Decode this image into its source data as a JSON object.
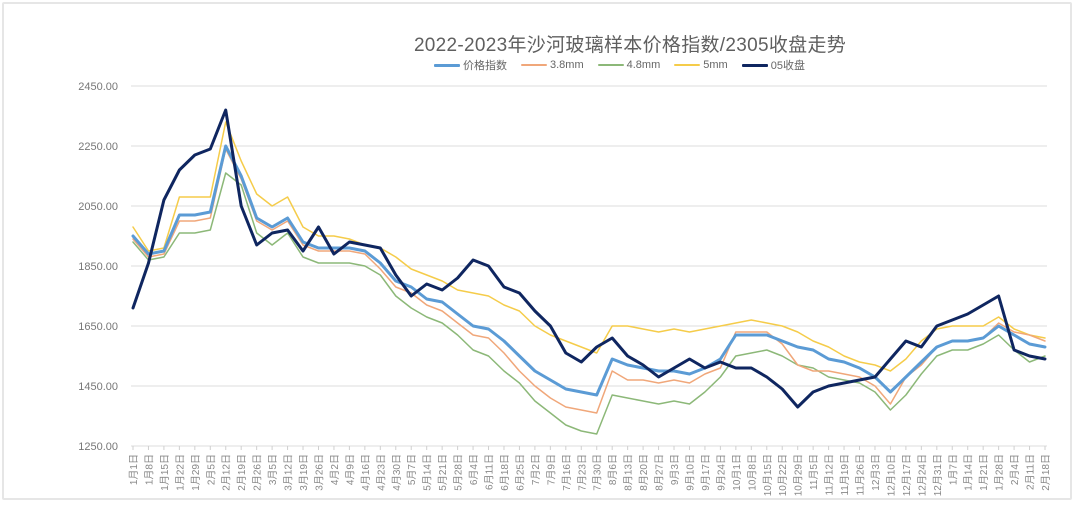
{
  "chart_data": {
    "type": "line",
    "title": "2022-2023年沙河玻璃样本价格指数/2305收盘走势",
    "xlabel": "",
    "ylabel": "",
    "ylim": [
      1250,
      2450
    ],
    "yticks": [
      "2450.00",
      "2250.00",
      "2050.00",
      "1850.00",
      "1650.00",
      "1450.00",
      "1250.00"
    ],
    "grid": true,
    "legend_position": "top",
    "categories": [
      "1月1日",
      "1月8日",
      "1月15日",
      "1月22日",
      "1月29日",
      "2月5日",
      "2月12日",
      "2月19日",
      "2月26日",
      "3月5日",
      "3月12日",
      "3月19日",
      "3月26日",
      "4月2日",
      "4月9日",
      "4月16日",
      "4月23日",
      "4月30日",
      "5月7日",
      "5月14日",
      "5月21日",
      "5月28日",
      "6月4日",
      "6月11日",
      "6月18日",
      "6月25日",
      "7月2日",
      "7月9日",
      "7月16日",
      "7月23日",
      "7月30日",
      "8月6日",
      "8月13日",
      "8月20日",
      "8月27日",
      "9月3日",
      "9月10日",
      "9月17日",
      "9月24日",
      "10月1日",
      "10月8日",
      "10月15日",
      "10月22日",
      "10月29日",
      "11月5日",
      "11月12日",
      "11月19日",
      "11月26日",
      "12月3日",
      "12月10日",
      "12月17日",
      "12月24日",
      "12月31日",
      "1月7日",
      "1月14日",
      "1月21日",
      "1月28日",
      "2月4日",
      "2月11日",
      "2月18日"
    ],
    "series": [
      {
        "name": "价格指数",
        "color": "#5b9bd5",
        "width": 3,
        "values": [
          1950,
          1890,
          1900,
          2020,
          2020,
          2030,
          2250,
          2150,
          2010,
          1980,
          2010,
          1930,
          1910,
          1910,
          1910,
          1900,
          1860,
          1800,
          1780,
          1740,
          1730,
          1690,
          1650,
          1640,
          1600,
          1550,
          1500,
          1470,
          1440,
          1430,
          1420,
          1540,
          1520,
          1510,
          1500,
          1500,
          1490,
          1510,
          1540,
          1620,
          1620,
          1620,
          1600,
          1580,
          1570,
          1540,
          1530,
          1510,
          1480,
          1430,
          1480,
          1530,
          1580,
          1600,
          1600,
          1610,
          1650,
          1620,
          1590,
          1580
        ]
      },
      {
        "name": "3.8mm",
        "color": "#f0a77a",
        "width": 1.5,
        "values": [
          1940,
          1880,
          1890,
          2000,
          2000,
          2010,
          2240,
          2140,
          2000,
          1970,
          2000,
          1920,
          1900,
          1900,
          1900,
          1890,
          1840,
          1780,
          1760,
          1720,
          1700,
          1660,
          1620,
          1610,
          1560,
          1500,
          1450,
          1410,
          1380,
          1370,
          1360,
          1500,
          1470,
          1470,
          1460,
          1470,
          1460,
          1490,
          1510,
          1630,
          1630,
          1630,
          1590,
          1520,
          1500,
          1500,
          1490,
          1480,
          1450,
          1390,
          1480,
          1520,
          1580,
          1600,
          1600,
          1610,
          1660,
          1630,
          1620,
          1600
        ]
      },
      {
        "name": "4.8mm",
        "color": "#8cb878",
        "width": 1.5,
        "values": [
          1930,
          1870,
          1880,
          1960,
          1960,
          1970,
          2160,
          2120,
          1960,
          1920,
          1960,
          1880,
          1860,
          1860,
          1860,
          1850,
          1820,
          1750,
          1710,
          1680,
          1660,
          1620,
          1570,
          1550,
          1500,
          1460,
          1400,
          1360,
          1320,
          1300,
          1290,
          1420,
          1410,
          1400,
          1390,
          1400,
          1390,
          1430,
          1480,
          1550,
          1560,
          1570,
          1550,
          1520,
          1510,
          1480,
          1470,
          1460,
          1430,
          1370,
          1420,
          1490,
          1550,
          1570,
          1570,
          1590,
          1620,
          1570,
          1530,
          1550
        ]
      },
      {
        "name": "5mm",
        "color": "#f5cc4a",
        "width": 1.5,
        "values": [
          1980,
          1900,
          1910,
          2080,
          2080,
          2080,
          2330,
          2200,
          2090,
          2050,
          2080,
          1980,
          1950,
          1950,
          1940,
          1920,
          1910,
          1880,
          1840,
          1820,
          1800,
          1770,
          1760,
          1750,
          1720,
          1700,
          1650,
          1620,
          1600,
          1580,
          1560,
          1650,
          1650,
          1640,
          1630,
          1640,
          1630,
          1640,
          1650,
          1660,
          1670,
          1660,
          1650,
          1630,
          1600,
          1580,
          1550,
          1530,
          1520,
          1500,
          1540,
          1600,
          1640,
          1650,
          1650,
          1650,
          1680,
          1640,
          1620,
          1610
        ]
      },
      {
        "name": "05收盘",
        "color": "#0f2660",
        "width": 3,
        "values": [
          1710,
          1860,
          2070,
          2170,
          2220,
          2240,
          2370,
          2050,
          1920,
          1960,
          1970,
          1900,
          1980,
          1890,
          1930,
          1920,
          1910,
          1820,
          1750,
          1790,
          1770,
          1810,
          1870,
          1850,
          1780,
          1760,
          1700,
          1650,
          1560,
          1530,
          1580,
          1610,
          1550,
          1520,
          1480,
          1510,
          1540,
          1510,
          1530,
          1510,
          1510,
          1480,
          1440,
          1380,
          1430,
          1450,
          1460,
          1470,
          1480,
          1540,
          1600,
          1580,
          1650,
          1670,
          1690,
          1720,
          1750,
          1570,
          1550,
          1540
        ]
      }
    ]
  },
  "legend": {
    "items": [
      {
        "label": "价格指数",
        "color": "#5b9bd5"
      },
      {
        "label": "3.8mm",
        "color": "#f0a77a"
      },
      {
        "label": "4.8mm",
        "color": "#8cb878"
      },
      {
        "label": "5mm",
        "color": "#f5cc4a"
      },
      {
        "label": "05收盘",
        "color": "#0f2660"
      }
    ]
  },
  "colors": {
    "grid": "#dcdcdc",
    "axis_text": "#777777",
    "title": "#5f5f5f"
  }
}
